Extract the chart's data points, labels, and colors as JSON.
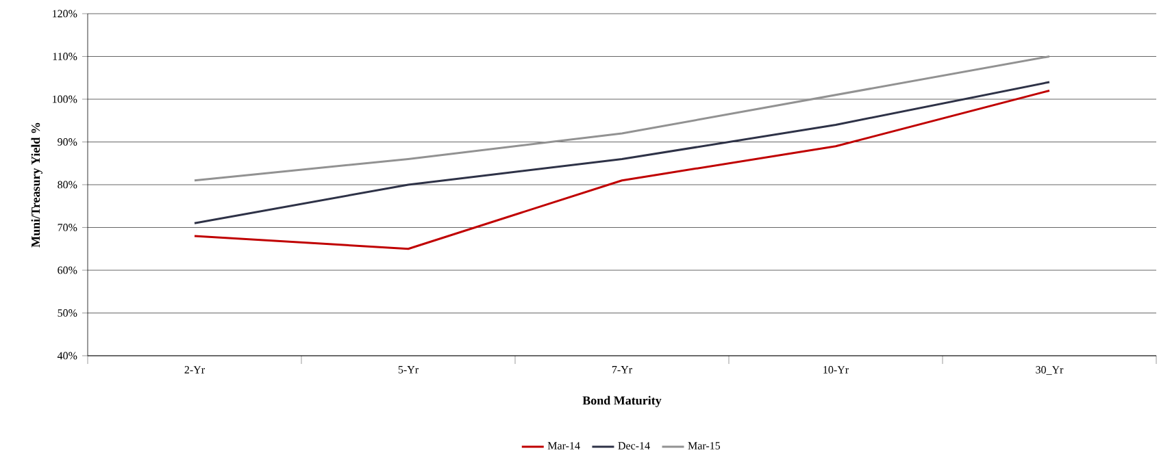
{
  "chart_data": {
    "type": "line",
    "xlabel": "Bond Maturity",
    "ylabel": "Muni/Treasury Yield %",
    "categories": [
      "2-Yr",
      "5-Yr",
      "7-Yr",
      "10-Yr",
      "30_Yr"
    ],
    "series": [
      {
        "name": "Mar-14",
        "color": "#c00000",
        "values": [
          68,
          65,
          81,
          89,
          102
        ]
      },
      {
        "name": "Dec-14",
        "color": "#2e3247",
        "values": [
          71,
          80,
          86,
          94,
          104
        ]
      },
      {
        "name": "Mar-15",
        "color": "#929292",
        "values": [
          81,
          86,
          92,
          101,
          110
        ]
      }
    ],
    "ylim": [
      40,
      120
    ],
    "yticks": [
      {
        "value": 40,
        "label": "40%"
      },
      {
        "value": 50,
        "label": "50%"
      },
      {
        "value": 60,
        "label": "60%"
      },
      {
        "value": 70,
        "label": "70%"
      },
      {
        "value": 80,
        "label": "80%"
      },
      {
        "value": 90,
        "label": "90%"
      },
      {
        "value": 100,
        "label": "100%"
      },
      {
        "value": 110,
        "label": "110%"
      },
      {
        "value": 120,
        "label": "120%"
      }
    ],
    "grid": "y",
    "legend": "bottom"
  }
}
